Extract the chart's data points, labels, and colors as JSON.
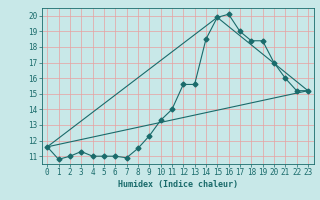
{
  "title": "",
  "xlabel": "Humidex (Indice chaleur)",
  "ylabel": "",
  "bg_color": "#c8e8e8",
  "line_color": "#1a6b6b",
  "grid_color": "#e8a0a0",
  "xlim": [
    -0.5,
    23.5
  ],
  "ylim": [
    10.5,
    20.5
  ],
  "yticks": [
    11,
    12,
    13,
    14,
    15,
    16,
    17,
    18,
    19,
    20
  ],
  "xticks": [
    0,
    1,
    2,
    3,
    4,
    5,
    6,
    7,
    8,
    9,
    10,
    11,
    12,
    13,
    14,
    15,
    16,
    17,
    18,
    19,
    20,
    21,
    22,
    23
  ],
  "series": [
    {
      "x": [
        0,
        1,
        2,
        3,
        4,
        5,
        6,
        7,
        8,
        9,
        10,
        11,
        12,
        13,
        14,
        15,
        16,
        17,
        18,
        19,
        20,
        21,
        22,
        23
      ],
      "y": [
        11.6,
        10.8,
        11.0,
        11.3,
        11.0,
        11.0,
        11.0,
        10.9,
        11.5,
        12.3,
        13.3,
        14.0,
        15.6,
        15.6,
        18.5,
        19.9,
        20.1,
        19.0,
        18.4,
        18.4,
        17.0,
        16.0,
        15.2,
        15.2
      ]
    },
    {
      "x": [
        0,
        23
      ],
      "y": [
        11.6,
        15.2
      ]
    },
    {
      "x": [
        0,
        15,
        23
      ],
      "y": [
        11.6,
        19.9,
        15.2
      ]
    }
  ]
}
